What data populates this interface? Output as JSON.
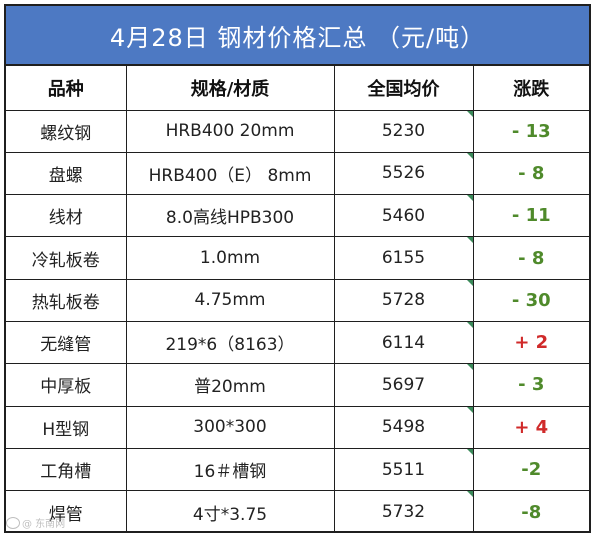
{
  "title": "4月28日  钢材价格汇总  （元/吨）",
  "headers": [
    "品种",
    "规格/材质",
    "全国均价",
    "涨跌"
  ],
  "rows": [
    {
      "name": "螺纹钢",
      "spec": "HRB400 20mm",
      "avg": "5230",
      "change": "- 13",
      "dir": "down"
    },
    {
      "name": "盘螺",
      "spec": "HRB400（E） 8mm",
      "avg": "5526",
      "change": "- 8",
      "dir": "down"
    },
    {
      "name": "线材",
      "spec": "8.0高线HPB300",
      "avg": "5460",
      "change": "- 11",
      "dir": "down"
    },
    {
      "name": "冷轧板卷",
      "spec": "1.0mm",
      "avg": "6155",
      "change": "- 8",
      "dir": "down"
    },
    {
      "name": "热轧板卷",
      "spec": "4.75mm",
      "avg": "5728",
      "change": "- 30",
      "dir": "down"
    },
    {
      "name": "无缝管",
      "spec": "219*6（8163）",
      "avg": "6114",
      "change": "+ 2",
      "dir": "up"
    },
    {
      "name": "中厚板",
      "spec": "普20mm",
      "avg": "5697",
      "change": "- 3",
      "dir": "down"
    },
    {
      "name": "H型钢",
      "spec": "300*300",
      "avg": "5498",
      "change": "+ 4",
      "dir": "up"
    },
    {
      "name": "工角槽",
      "spec": "16＃槽钢",
      "avg": "5511",
      "change": "-2",
      "dir": "down"
    },
    {
      "name": "焊管",
      "spec": "4寸*3.75",
      "avg": "5732",
      "change": "-8",
      "dir": "down"
    }
  ],
  "colors": {
    "header_bg": "#4d79c3",
    "down": "#4f8a2b",
    "up": "#d02a2a"
  },
  "watermark": "@ 东南网"
}
